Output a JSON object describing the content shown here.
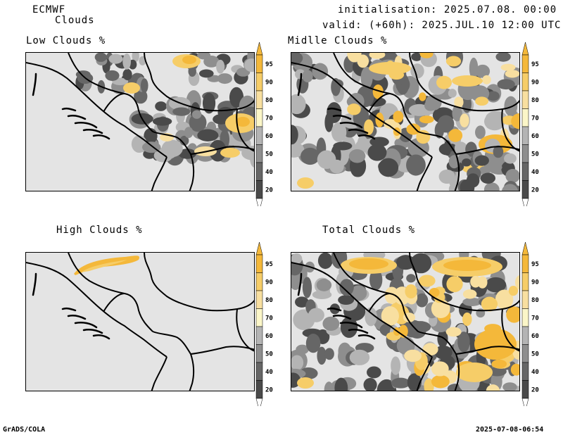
{
  "header": {
    "model": "ECMWF",
    "product": "Clouds",
    "initialisation": "initialisation: 2025.07.08. 00:00 UTC",
    "valid": "valid: (+60h): 2025.JUL.10 12:00 UTC"
  },
  "colors": {
    "background": "#e4e4e4",
    "c20": "#4a4a4a",
    "c40": "#666666",
    "c50": "#8e8e8e",
    "c60": "#b4b4b4",
    "c70": "#fbf6c8",
    "c80": "#f8dfa0",
    "c90": "#f6cd68",
    "c95": "#f4b83a"
  },
  "legend": {
    "ticks": [
      "95",
      "90",
      "80",
      "70",
      "60",
      "50",
      "40",
      "20"
    ]
  },
  "panels": [
    {
      "id": "low",
      "title": "Low Clouds %"
    },
    {
      "id": "middle",
      "title": "Midlle Clouds %"
    },
    {
      "id": "high",
      "title": "High Clouds %"
    },
    {
      "id": "total",
      "title": "Total Clouds %"
    }
  ],
  "footer": {
    "left": "GrADS/COLA",
    "right": "2025-07-08-06:54"
  }
}
